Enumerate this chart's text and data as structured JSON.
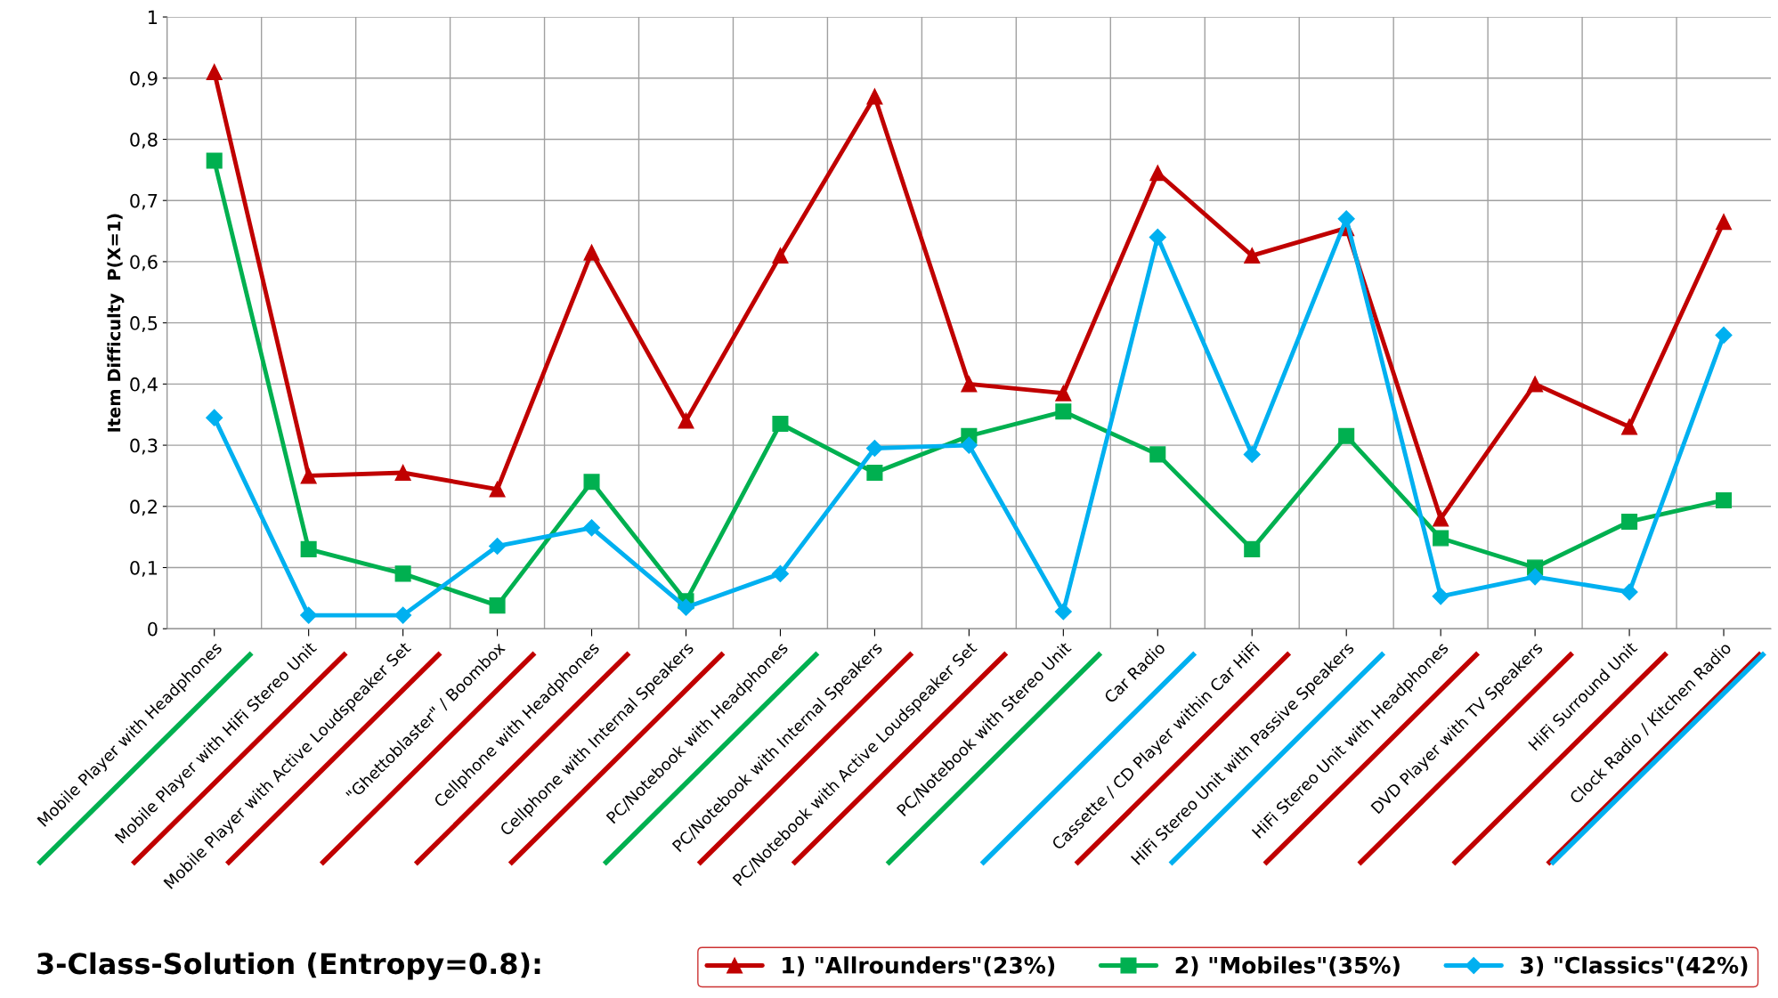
{
  "chart_data": {
    "type": "line",
    "ylabel": "Item Difficulty  P(X=1)",
    "legend_title": "3-Class-Solution (Entropy=0.8):",
    "categories": [
      "Mobile Player with Headphones",
      "Mobile Player with HiFi Stereo Unit",
      "Mobile Player with Active Loudspeaker Set",
      "\"Ghettoblaster\" / Boombox",
      "Cellphone with Headphones",
      "Cellphone with Internal Speakers",
      "PC/Notebook with Headphones",
      "PC/Notebook with Internal Speakers",
      "PC/Notebook with Active Loudspeaker Set",
      "PC/Notebook with Stereo Unit",
      "Car Radio",
      "Cassette / CD Player within Car HiFi",
      "HiFi Stereo Unit with Passive Speakers",
      "HiFi Stereo Unit with Headphones",
      "DVD Player with TV Speakers",
      "HiFi Surround Unit",
      "Clock Radio / Kitchen Radio"
    ],
    "series": [
      {
        "name": "1) \"Allrounders\"(23%)",
        "color": "#c00000",
        "marker": "triangle",
        "values": [
          0.91,
          0.25,
          0.255,
          0.228,
          0.615,
          0.34,
          0.61,
          0.87,
          0.4,
          0.385,
          0.745,
          0.61,
          0.655,
          0.18,
          0.4,
          0.33,
          0.665
        ]
      },
      {
        "name": "2) \"Mobiles\"(35%)",
        "color": "#00b050",
        "marker": "square",
        "values": [
          0.765,
          0.13,
          0.09,
          0.038,
          0.24,
          0.045,
          0.335,
          0.255,
          0.315,
          0.355,
          0.285,
          0.13,
          0.315,
          0.148,
          0.1,
          0.175,
          0.21
        ]
      },
      {
        "name": "3) \"Classics\"(42%)",
        "color": "#00b0f0",
        "marker": "diamond",
        "values": [
          0.345,
          0.022,
          0.022,
          0.135,
          0.165,
          0.035,
          0.09,
          0.295,
          0.3,
          0.028,
          0.64,
          0.285,
          0.67,
          0.053,
          0.085,
          0.06,
          0.48
        ]
      }
    ],
    "ylim": [
      0,
      1
    ],
    "yticks": [
      0,
      {
        "value": 0.1,
        "label": "0,1"
      },
      {
        "value": 0.2,
        "label": "0,2"
      },
      {
        "value": 0.3,
        "label": "0,3"
      },
      {
        "value": 0.4,
        "label": "0,4"
      },
      {
        "value": 0.5,
        "label": "0,5"
      },
      {
        "value": 0.6,
        "label": "0,6"
      },
      {
        "value": 0.7,
        "label": "0,7"
      },
      {
        "value": 0.8,
        "label": "0,8"
      },
      {
        "value": 0.9,
        "label": "0,9"
      },
      1
    ],
    "grid": true,
    "legend": "bottom",
    "line_style": "solid"
  }
}
